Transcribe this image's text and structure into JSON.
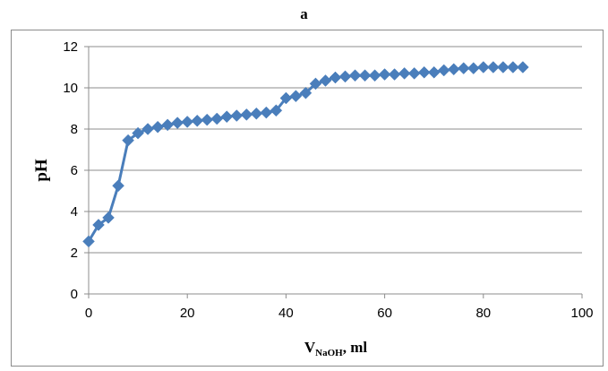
{
  "chart_data": {
    "type": "line",
    "title": "a",
    "xlabel_main": "V",
    "xlabel_sub": "NaOH",
    "xlabel_tail": ", ml",
    "ylabel": "pH",
    "xlim": [
      0,
      100
    ],
    "ylim": [
      0,
      12
    ],
    "x_ticks": [
      0,
      20,
      40,
      60,
      80,
      100
    ],
    "y_ticks": [
      0,
      2,
      4,
      6,
      8,
      10,
      12
    ],
    "grid": "horizontal",
    "legend": "none",
    "marker": "diamond",
    "color": "#4a7ebb",
    "series": [
      {
        "x": [
          0,
          2,
          4,
          6,
          8,
          10,
          12,
          14,
          16,
          18,
          20,
          22,
          24,
          26,
          28,
          30,
          32,
          34,
          36,
          38,
          40,
          42,
          44,
          46,
          48,
          50,
          52,
          54,
          56,
          58,
          60,
          62,
          64,
          66,
          68,
          70,
          72,
          74,
          76,
          78,
          80,
          82,
          84,
          86,
          88
        ],
        "values": [
          2.55,
          3.35,
          3.7,
          5.25,
          7.45,
          7.8,
          8.0,
          8.1,
          8.2,
          8.3,
          8.35,
          8.4,
          8.45,
          8.5,
          8.6,
          8.65,
          8.7,
          8.75,
          8.8,
          8.9,
          9.5,
          9.6,
          9.75,
          10.2,
          10.35,
          10.5,
          10.55,
          10.6,
          10.6,
          10.6,
          10.65,
          10.65,
          10.7,
          10.7,
          10.75,
          10.75,
          10.85,
          10.9,
          10.95,
          10.95,
          11.0,
          11.0,
          11.0,
          11.0,
          11.0
        ]
      }
    ]
  }
}
